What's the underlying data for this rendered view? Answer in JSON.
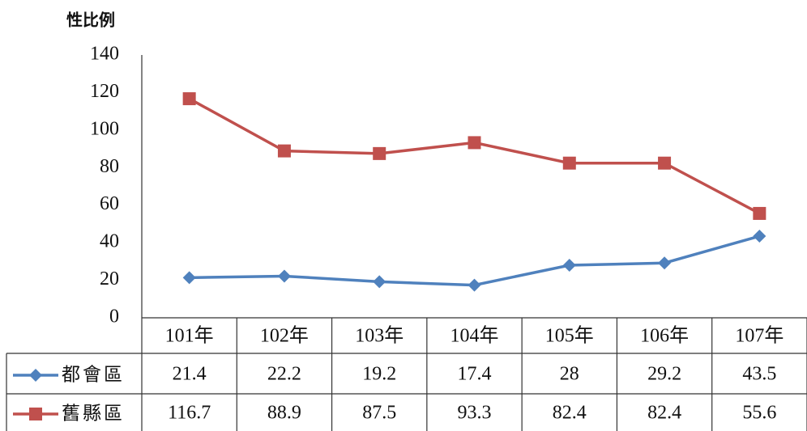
{
  "chart_data": {
    "type": "line",
    "title": "性比例",
    "categories": [
      "101年",
      "102年",
      "103年",
      "104年",
      "105年",
      "106年",
      "107年"
    ],
    "series": [
      {
        "name": "都會區",
        "color": "#4f81bd",
        "marker": "diamond",
        "values": [
          21.4,
          22.2,
          19.2,
          17.4,
          28,
          29.2,
          43.5
        ]
      },
      {
        "name": "舊縣區",
        "color": "#c0504d",
        "marker": "square",
        "values": [
          116.7,
          88.9,
          87.5,
          93.3,
          82.4,
          82.4,
          55.6
        ]
      }
    ],
    "ylim": [
      0,
      140
    ],
    "yticks": [
      0,
      20,
      40,
      60,
      80,
      100,
      120,
      140
    ],
    "grid": false
  }
}
